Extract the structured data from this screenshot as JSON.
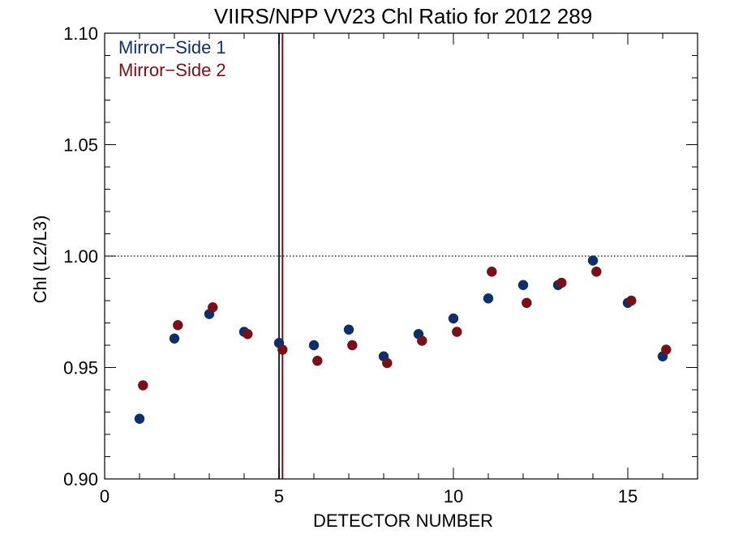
{
  "chart_data": {
    "type": "scatter",
    "title": "VIIRS/NPP VV23 Chl Ratio for 2012 289",
    "xlabel": "DETECTOR NUMBER",
    "ylabel": "Chl (L2/L3)",
    "xlim": [
      0,
      17
    ],
    "ylim": [
      0.9,
      1.1
    ],
    "x_ticks": [
      0,
      5,
      10,
      15
    ],
    "x_tick_labels": [
      "0",
      "5",
      "10",
      "15"
    ],
    "y_ticks": [
      0.9,
      0.95,
      1.0,
      1.05,
      1.1
    ],
    "y_tick_labels": [
      "0.90",
      "0.95",
      "1.00",
      "1.05",
      "1.10"
    ],
    "reference_line": {
      "y": 1.0,
      "style": "dotted"
    },
    "legend_position": "top-left",
    "series": [
      {
        "name": "Mirror−Side 1",
        "color": "#0d2f6b",
        "marker_line_x": 5.0,
        "points": [
          [
            1,
            0.927
          ],
          [
            2,
            0.963
          ],
          [
            3,
            0.974
          ],
          [
            4,
            0.966
          ],
          [
            5,
            0.961
          ],
          [
            6,
            0.96
          ],
          [
            7,
            0.967
          ],
          [
            8,
            0.955
          ],
          [
            9,
            0.965
          ],
          [
            10,
            0.972
          ],
          [
            11,
            0.981
          ],
          [
            12,
            0.987
          ],
          [
            13,
            0.987
          ],
          [
            14,
            0.998
          ],
          [
            15,
            0.979
          ],
          [
            16,
            0.955
          ]
        ]
      },
      {
        "name": "Mirror−Side 2",
        "color": "#7a0f18",
        "marker_line_x": 5.1,
        "points": [
          [
            1.1,
            0.942
          ],
          [
            2.1,
            0.969
          ],
          [
            3.1,
            0.977
          ],
          [
            4.1,
            0.965
          ],
          [
            5.1,
            0.958
          ],
          [
            6.1,
            0.953
          ],
          [
            7.1,
            0.96
          ],
          [
            8.1,
            0.952
          ],
          [
            9.1,
            0.962
          ],
          [
            10.1,
            0.966
          ],
          [
            11.1,
            0.993
          ],
          [
            12.1,
            0.979
          ],
          [
            13.1,
            0.988
          ],
          [
            14.1,
            0.993
          ],
          [
            15.1,
            0.98
          ],
          [
            16.1,
            0.958
          ]
        ]
      }
    ]
  }
}
